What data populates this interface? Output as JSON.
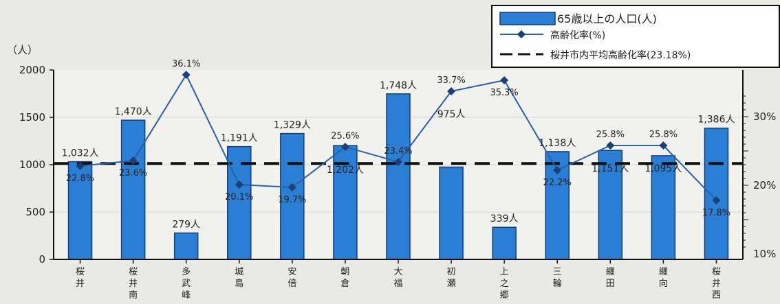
{
  "chart_data": {
    "type": "bar+line",
    "title": "",
    "ylabel_left": "（人）",
    "left_axis": {
      "ylim": [
        0,
        2000
      ],
      "ticks": [
        "0",
        "500",
        "1000",
        "1500",
        "2000"
      ]
    },
    "right_axis": {
      "ticks": [
        "10%",
        "20%",
        "30%"
      ]
    },
    "categories": [
      "桜井",
      "桜井南",
      "多武峰",
      "城島",
      "安倍",
      "朝倉",
      "大福",
      "初瀬",
      "上之郷",
      "三輪",
      "纒田",
      "纒向",
      "桜井西"
    ],
    "series": [
      {
        "name": "65歳以上の人口(人)",
        "type": "bar",
        "color": "#2a7fd4",
        "values": [
          1032,
          1470,
          279,
          1191,
          1329,
          1202,
          1748,
          975,
          339,
          1138,
          1151,
          1095,
          1386
        ],
        "labels": [
          "1,032人",
          "1,470人",
          "279人",
          "1,191人",
          "1,329人",
          "1,202人",
          "1,748人",
          "975人",
          "339人",
          "1,138人",
          "1,151人",
          "1,095人",
          "1,386人"
        ]
      },
      {
        "name": "高齢化率(%)",
        "type": "line",
        "color": "#2b5fa8",
        "values": [
          22.8,
          23.6,
          36.1,
          20.1,
          19.7,
          25.6,
          23.4,
          33.7,
          35.3,
          22.2,
          25.8,
          25.8,
          17.8
        ],
        "labels": [
          "22.8%",
          "23.6%",
          "36.1%",
          "20.1%",
          "19.7%",
          "25.6%",
          "23.4%",
          "33.7%",
          "35.3%",
          "22.2%",
          "25.8%",
          "25.8%",
          "17.8%"
        ]
      },
      {
        "name": "桜井市内平均高齢化率(23.18%)",
        "type": "reference-line",
        "color": "#111111",
        "value": 23.18
      }
    ],
    "legend_position": "top-right"
  }
}
